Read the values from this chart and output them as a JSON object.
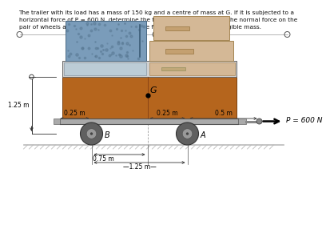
{
  "text_line1": "The trailer with its load has a mass of 150 kg and a centre of mass at G. If it is subjected to a",
  "text_line2": "horizontal force of P = 600 N, determine the trailer’s acceleration and the normal force on the",
  "text_line3": "pair of wheels at A and at B. The wheels are free to roll and have negligible mass.",
  "bg_color": "#ffffff",
  "trailer_brown": "#b5651d",
  "frame_gray": "#aaaaaa",
  "frame_dark": "#888888",
  "box_blue": "#7a9cba",
  "box_blue_dark": "#5a7a95",
  "box_tan": "#d4b896",
  "box_tan_dark": "#c4a070",
  "wheel_dark": "#606060",
  "wheel_mid": "#999999",
  "ground_color": "#bbbbbb",
  "P_label": "P = 600 N",
  "G_label": "G",
  "A_label": "A",
  "B_label": "B",
  "dim_125m_left": "1.25 m",
  "dim_025m_B": "0.25 m",
  "dim_025m_A": "0.25 m",
  "dim_05m": "0.5 m",
  "dim_075m": "0.75 m",
  "dim_125m_bot": "1.25 m"
}
